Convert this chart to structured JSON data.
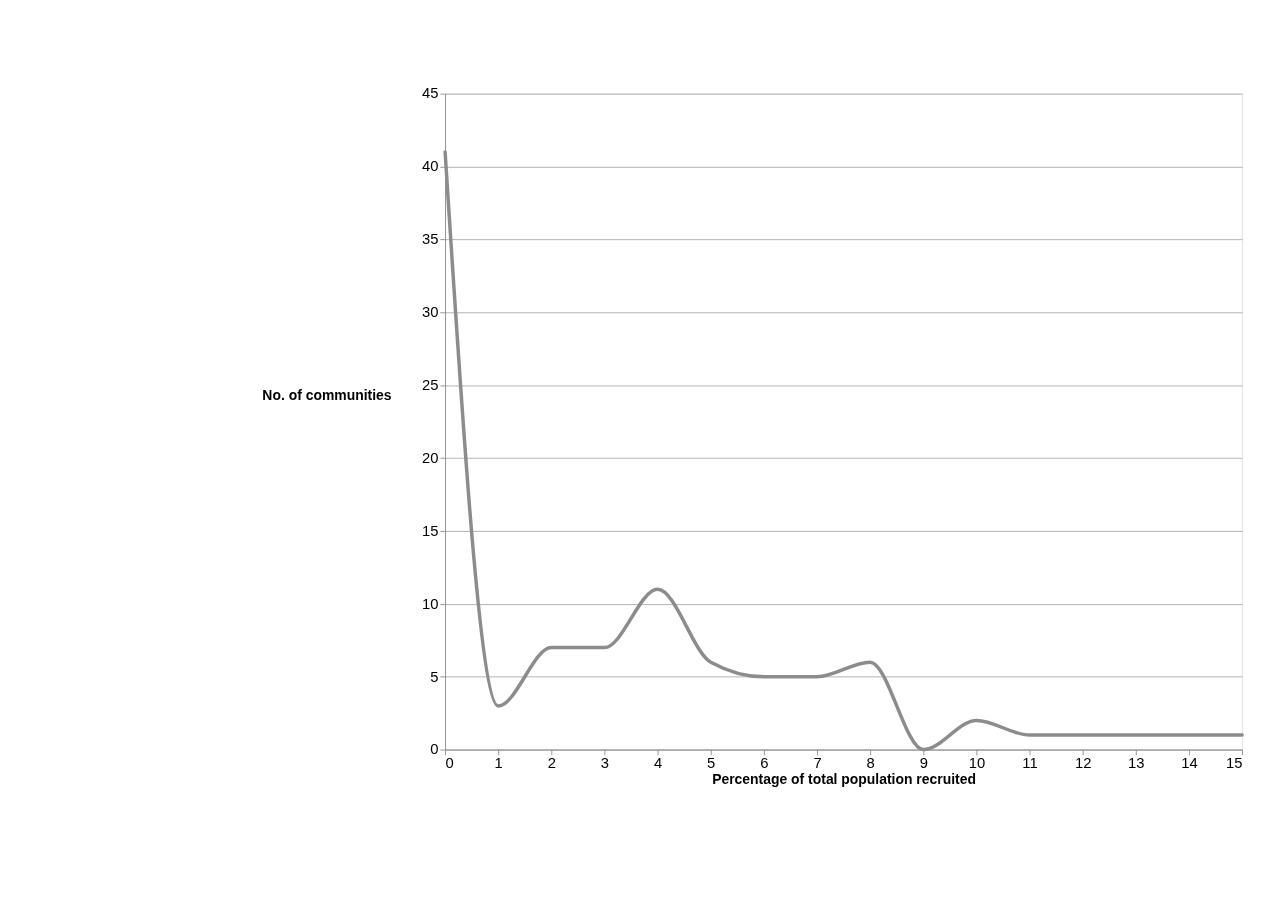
{
  "chart_data": {
    "type": "line",
    "xlabel": "Percentage of total population recruited",
    "ylabel": "No. of communities",
    "x": [
      0,
      1,
      2,
      3,
      4,
      5,
      6,
      7,
      8,
      9,
      10,
      11,
      12,
      13,
      14,
      15
    ],
    "series": [
      {
        "color": "#8c8c8c",
        "values": [
          41,
          3,
          7,
          7,
          11,
          6,
          5,
          5,
          6,
          0,
          2,
          1,
          1,
          1,
          1,
          1
        ]
      }
    ],
    "xlim": [
      0,
      15
    ],
    "xticks": [
      0,
      1,
      2,
      3,
      4,
      5,
      6,
      7,
      8,
      9,
      10,
      11,
      12,
      13,
      14,
      15
    ],
    "ylim": [
      0,
      45
    ],
    "yticks": [
      0,
      5,
      10,
      15,
      20,
      25,
      30,
      35,
      40,
      45
    ],
    "grid": "y",
    "legend": false,
    "marker": "none",
    "line_style": "solid"
  }
}
